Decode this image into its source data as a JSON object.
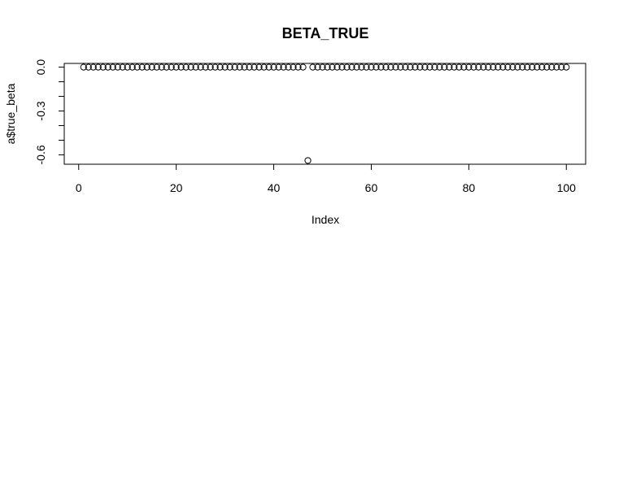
{
  "chart_data": {
    "type": "scatter",
    "title": "BETA_TRUE",
    "xlabel": "Index",
    "ylabel": "a$true_beta",
    "x_ticks": [
      0,
      20,
      40,
      60,
      80,
      100
    ],
    "x_tick_labels": [
      "0",
      "20",
      "40",
      "60",
      "80",
      "100"
    ],
    "y_ticks": [
      0.0,
      -0.3,
      -0.6
    ],
    "y_tick_labels": [
      "0.0",
      "-0.3",
      "-0.6"
    ],
    "xlim": [
      -2.96,
      103.96
    ],
    "ylim": [
      -0.6644,
      0.0256
    ],
    "grid": false,
    "legend": "none",
    "marker": "open-circle",
    "series": [
      {
        "x": [
          1,
          2,
          3,
          4,
          5,
          6,
          7,
          8,
          9,
          10,
          11,
          12,
          13,
          14,
          15,
          16,
          17,
          18,
          19,
          20,
          21,
          22,
          23,
          24,
          25,
          26,
          27,
          28,
          29,
          30,
          31,
          32,
          33,
          34,
          35,
          36,
          37,
          38,
          39,
          40,
          41,
          42,
          43,
          44,
          45,
          46,
          47,
          48,
          49,
          50,
          51,
          52,
          53,
          54,
          55,
          56,
          57,
          58,
          59,
          60,
          61,
          62,
          63,
          64,
          65,
          66,
          67,
          68,
          69,
          70,
          71,
          72,
          73,
          74,
          75,
          76,
          77,
          78,
          79,
          80,
          81,
          82,
          83,
          84,
          85,
          86,
          87,
          88,
          89,
          90,
          91,
          92,
          93,
          94,
          95,
          96,
          97,
          98,
          99,
          100
        ],
        "y": [
          0,
          0,
          0,
          0,
          0,
          0,
          0,
          0,
          0,
          0,
          0,
          0,
          0,
          0,
          0,
          0,
          0,
          0,
          0,
          0,
          0,
          0,
          0,
          0,
          0,
          0,
          0,
          0,
          0,
          0,
          0,
          0,
          0,
          0,
          0,
          0,
          0,
          0,
          0,
          0,
          0,
          0,
          0,
          0,
          0,
          0,
          -0.639,
          0,
          0,
          0,
          0,
          0,
          0,
          0,
          0,
          0,
          0,
          0,
          0,
          0,
          0,
          0,
          0,
          0,
          0,
          0,
          0,
          0,
          0,
          0,
          0,
          0,
          0,
          0,
          0,
          0,
          0,
          0,
          0,
          0,
          0,
          0,
          0,
          0,
          0,
          0,
          0,
          0,
          0,
          0,
          0,
          0,
          0,
          0,
          0,
          0,
          0,
          0,
          0,
          0
        ]
      }
    ]
  }
}
